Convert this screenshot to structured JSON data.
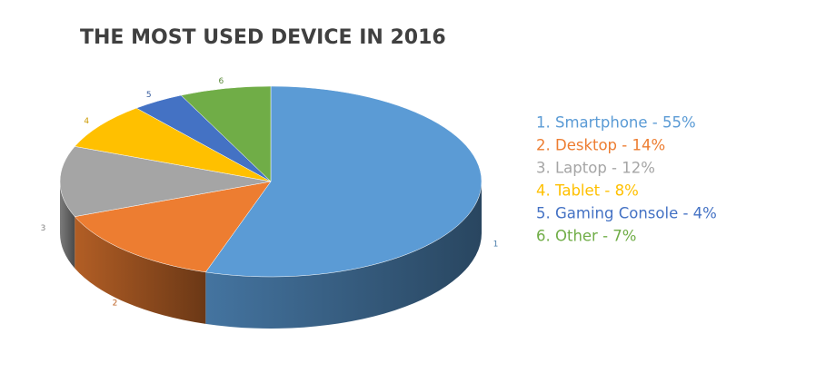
{
  "chart_data": {
    "type": "pie",
    "title": "THE MOST USED DEVICE IN 2016",
    "categories": [
      "1",
      "2",
      "3",
      "4",
      "5",
      "6"
    ],
    "legend_labels": [
      "1. Smartphone - 55%",
      "2. Desktop - 14%",
      "3. Laptop - 12%",
      "4. Tablet - 8%",
      "5. Gaming Console - 4%",
      "6. Other - 7%"
    ],
    "values": [
      55,
      14,
      12,
      8,
      4,
      7
    ],
    "colors": [
      "#5b9bd5",
      "#ed7d31",
      "#a5a5a5",
      "#ffc000",
      "#4472c4",
      "#70ad47"
    ],
    "legend": "right"
  }
}
